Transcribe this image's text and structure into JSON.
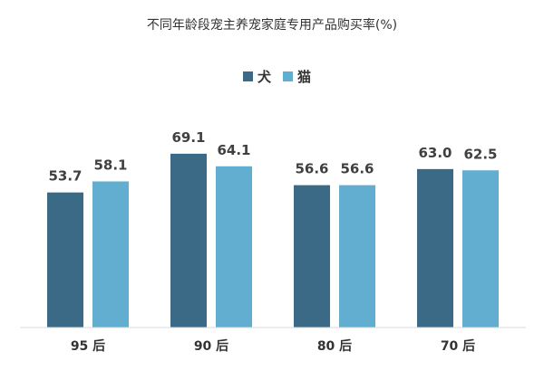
{
  "chart_data": {
    "type": "bar",
    "title": "不同年龄段宠主养宠家庭专用产品购买率(%)",
    "categories": [
      "95 后",
      "90 后",
      "80 后",
      "70 后"
    ],
    "series": [
      {
        "name": "犬",
        "color": "#3b6a86",
        "values": [
          53.7,
          69.1,
          56.6,
          63.0
        ]
      },
      {
        "name": "猫",
        "color": "#62aed1",
        "values": [
          58.1,
          64.1,
          56.6,
          62.5
        ]
      }
    ],
    "ylim": [
      0,
      100
    ],
    "grid": false,
    "legend": "top-center"
  }
}
